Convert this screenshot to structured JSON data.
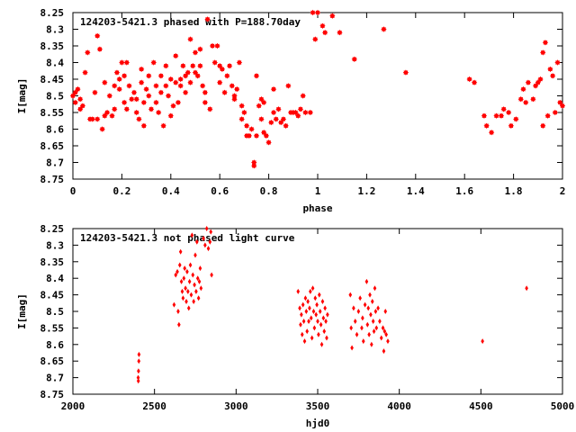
{
  "chart_data": [
    {
      "type": "scatter",
      "title": "124203-5421.3 phased with P=188.70day",
      "xlabel": "phase",
      "ylabel": "I[mag]",
      "xlim": [
        0,
        2
      ],
      "ylim": [
        8.75,
        8.25
      ],
      "y_inverted": true,
      "x_ticks": [
        "0",
        "0.2",
        "0.4",
        "0.6",
        "0.8",
        "1",
        "1.2",
        "1.4",
        "1.6",
        "1.8",
        "2"
      ],
      "x_tick_values": [
        0,
        0.2,
        0.4,
        0.6,
        0.8,
        1.0,
        1.2,
        1.4,
        1.6,
        1.8,
        2.0
      ],
      "y_ticks": [
        "8.25",
        "8.3",
        "8.35",
        "8.4",
        "8.45",
        "8.5",
        "8.55",
        "8.6",
        "8.65",
        "8.7",
        "8.75"
      ],
      "y_tick_values": [
        8.25,
        8.3,
        8.35,
        8.4,
        8.45,
        8.5,
        8.55,
        8.6,
        8.65,
        8.7,
        8.75
      ],
      "marker_color": "#ff0000",
      "marker": "star",
      "points": [
        [
          0.0,
          8.5
        ],
        [
          0.01,
          8.49
        ],
        [
          0.01,
          8.52
        ],
        [
          0.02,
          8.48
        ],
        [
          0.03,
          8.51
        ],
        [
          0.03,
          8.54
        ],
        [
          0.04,
          8.53
        ],
        [
          0.05,
          8.43
        ],
        [
          0.06,
          8.37
        ],
        [
          0.07,
          8.57
        ],
        [
          0.08,
          8.57
        ],
        [
          0.09,
          8.49
        ],
        [
          0.1,
          8.57
        ],
        [
          0.1,
          8.32
        ],
        [
          0.11,
          8.36
        ],
        [
          0.12,
          8.6
        ],
        [
          0.13,
          8.46
        ],
        [
          0.13,
          8.56
        ],
        [
          0.14,
          8.55
        ],
        [
          0.15,
          8.5
        ],
        [
          0.16,
          8.56
        ],
        [
          0.17,
          8.47
        ],
        [
          0.17,
          8.54
        ],
        [
          0.18,
          8.43
        ],
        [
          0.19,
          8.45
        ],
        [
          0.19,
          8.48
        ],
        [
          0.2,
          8.4
        ],
        [
          0.21,
          8.44
        ],
        [
          0.21,
          8.52
        ],
        [
          0.22,
          8.4
        ],
        [
          0.22,
          8.54
        ],
        [
          0.23,
          8.47
        ],
        [
          0.24,
          8.51
        ],
        [
          0.25,
          8.49
        ],
        [
          0.26,
          8.55
        ],
        [
          0.26,
          8.51
        ],
        [
          0.27,
          8.57
        ],
        [
          0.28,
          8.42
        ],
        [
          0.28,
          8.46
        ],
        [
          0.29,
          8.52
        ],
        [
          0.29,
          8.59
        ],
        [
          0.3,
          8.48
        ],
        [
          0.31,
          8.44
        ],
        [
          0.31,
          8.5
        ],
        [
          0.32,
          8.54
        ],
        [
          0.33,
          8.4
        ],
        [
          0.34,
          8.47
        ],
        [
          0.34,
          8.52
        ],
        [
          0.35,
          8.55
        ],
        [
          0.36,
          8.49
        ],
        [
          0.36,
          8.44
        ],
        [
          0.37,
          8.59
        ],
        [
          0.38,
          8.47
        ],
        [
          0.38,
          8.41
        ],
        [
          0.39,
          8.5
        ],
        [
          0.4,
          8.56
        ],
        [
          0.4,
          8.45
        ],
        [
          0.41,
          8.53
        ],
        [
          0.42,
          8.46
        ],
        [
          0.42,
          8.38
        ],
        [
          0.43,
          8.52
        ],
        [
          0.44,
          8.47
        ],
        [
          0.44,
          8.45
        ],
        [
          0.45,
          8.41
        ],
        [
          0.46,
          8.44
        ],
        [
          0.46,
          8.49
        ],
        [
          0.47,
          8.43
        ],
        [
          0.48,
          8.33
        ],
        [
          0.48,
          8.46
        ],
        [
          0.49,
          8.41
        ],
        [
          0.5,
          8.37
        ],
        [
          0.5,
          8.43
        ],
        [
          0.51,
          8.44
        ],
        [
          0.52,
          8.36
        ],
        [
          0.52,
          8.41
        ],
        [
          0.53,
          8.47
        ],
        [
          0.54,
          8.52
        ],
        [
          0.54,
          8.49
        ],
        [
          0.55,
          8.27
        ],
        [
          0.56,
          8.54
        ],
        [
          0.57,
          8.35
        ],
        [
          0.58,
          8.4
        ],
        [
          0.59,
          8.35
        ],
        [
          0.6,
          8.41
        ],
        [
          0.6,
          8.46
        ],
        [
          0.61,
          8.42
        ],
        [
          0.62,
          8.49
        ],
        [
          0.63,
          8.44
        ],
        [
          0.64,
          8.41
        ],
        [
          0.65,
          8.47
        ],
        [
          0.66,
          8.51
        ],
        [
          0.66,
          8.5
        ],
        [
          0.67,
          8.48
        ],
        [
          0.68,
          8.4
        ],
        [
          0.69,
          8.53
        ],
        [
          0.69,
          8.57
        ],
        [
          0.7,
          8.55
        ],
        [
          0.71,
          8.59
        ],
        [
          0.71,
          8.62
        ],
        [
          0.72,
          8.62
        ],
        [
          0.73,
          8.6
        ],
        [
          0.74,
          8.7
        ],
        [
          0.74,
          8.71
        ],
        [
          0.75,
          8.62
        ],
        [
          0.75,
          8.44
        ],
        [
          0.76,
          8.53
        ],
        [
          0.77,
          8.51
        ],
        [
          0.77,
          8.57
        ],
        [
          0.78,
          8.61
        ],
        [
          0.78,
          8.52
        ],
        [
          0.79,
          8.62
        ],
        [
          0.8,
          8.64
        ],
        [
          0.81,
          8.58
        ],
        [
          0.82,
          8.48
        ],
        [
          0.82,
          8.55
        ],
        [
          0.83,
          8.57
        ],
        [
          0.84,
          8.54
        ],
        [
          0.85,
          8.58
        ],
        [
          0.86,
          8.57
        ],
        [
          0.87,
          8.59
        ],
        [
          0.88,
          8.47
        ],
        [
          0.89,
          8.55
        ],
        [
          0.9,
          8.55
        ],
        [
          0.91,
          8.55
        ],
        [
          0.92,
          8.56
        ],
        [
          0.93,
          8.54
        ],
        [
          0.94,
          8.5
        ],
        [
          0.95,
          8.55
        ],
        [
          0.97,
          8.55
        ],
        [
          0.98,
          8.25
        ],
        [
          0.99,
          8.33
        ],
        [
          1.0,
          8.25
        ],
        [
          1.02,
          8.29
        ],
        [
          1.03,
          8.31
        ],
        [
          1.06,
          8.26
        ],
        [
          1.09,
          8.31
        ],
        [
          1.15,
          8.39
        ],
        [
          1.27,
          8.3
        ],
        [
          1.36,
          8.43
        ],
        [
          1.62,
          8.45
        ],
        [
          1.64,
          8.46
        ],
        [
          1.68,
          8.56
        ],
        [
          1.69,
          8.59
        ],
        [
          1.71,
          8.61
        ],
        [
          1.73,
          8.56
        ],
        [
          1.75,
          8.56
        ],
        [
          1.76,
          8.54
        ],
        [
          1.78,
          8.55
        ],
        [
          1.79,
          8.59
        ],
        [
          1.81,
          8.57
        ],
        [
          1.83,
          8.51
        ],
        [
          1.84,
          8.48
        ],
        [
          1.85,
          8.52
        ],
        [
          1.86,
          8.46
        ],
        [
          1.88,
          8.51
        ],
        [
          1.89,
          8.47
        ],
        [
          1.9,
          8.46
        ],
        [
          1.91,
          8.45
        ],
        [
          1.92,
          8.59
        ],
        [
          1.92,
          8.37
        ],
        [
          1.93,
          8.34
        ],
        [
          1.94,
          8.56
        ],
        [
          1.95,
          8.42
        ],
        [
          1.96,
          8.44
        ],
        [
          1.97,
          8.55
        ],
        [
          1.98,
          8.4
        ],
        [
          1.99,
          8.52
        ],
        [
          2.0,
          8.53
        ]
      ]
    },
    {
      "type": "scatter",
      "title": "124203-5421.3 not phased light curve",
      "xlabel": "hjd0",
      "ylabel": "I[mag]",
      "xlim": [
        2000,
        5000
      ],
      "ylim": [
        8.75,
        8.25
      ],
      "y_inverted": true,
      "x_ticks": [
        "2000",
        "2500",
        "3000",
        "3500",
        "4000",
        "4500",
        "5000"
      ],
      "x_tick_values": [
        2000,
        2500,
        3000,
        3500,
        4000,
        4500,
        5000
      ],
      "y_ticks": [
        "8.25",
        "8.3",
        "8.35",
        "8.4",
        "8.45",
        "8.5",
        "8.55",
        "8.6",
        "8.65",
        "8.7",
        "8.75"
      ],
      "y_tick_values": [
        8.25,
        8.3,
        8.35,
        8.4,
        8.45,
        8.5,
        8.55,
        8.6,
        8.65,
        8.7,
        8.75
      ],
      "marker_color": "#ff0000",
      "marker": "diamond",
      "points": [
        [
          2400,
          8.7
        ],
        [
          2401,
          8.71
        ],
        [
          2402,
          8.68
        ],
        [
          2404,
          8.65
        ],
        [
          2405,
          8.63
        ],
        [
          2620,
          8.48
        ],
        [
          2630,
          8.39
        ],
        [
          2640,
          8.38
        ],
        [
          2645,
          8.5
        ],
        [
          2650,
          8.54
        ],
        [
          2655,
          8.36
        ],
        [
          2660,
          8.32
        ],
        [
          2665,
          8.41
        ],
        [
          2670,
          8.44
        ],
        [
          2675,
          8.46
        ],
        [
          2680,
          8.4
        ],
        [
          2685,
          8.37
        ],
        [
          2690,
          8.43
        ],
        [
          2695,
          8.47
        ],
        [
          2700,
          8.38
        ],
        [
          2705,
          8.44
        ],
        [
          2710,
          8.49
        ],
        [
          2715,
          8.41
        ],
        [
          2720,
          8.36
        ],
        [
          2725,
          8.45
        ],
        [
          2730,
          8.27
        ],
        [
          2735,
          8.39
        ],
        [
          2740,
          8.47
        ],
        [
          2745,
          8.42
        ],
        [
          2750,
          8.33
        ],
        [
          2755,
          8.44
        ],
        [
          2760,
          8.29
        ],
        [
          2765,
          8.4
        ],
        [
          2770,
          8.46
        ],
        [
          2775,
          8.41
        ],
        [
          2780,
          8.37
        ],
        [
          2785,
          8.43
        ],
        [
          2800,
          8.28
        ],
        [
          2810,
          8.3
        ],
        [
          2820,
          8.25
        ],
        [
          2830,
          8.31
        ],
        [
          2840,
          8.29
        ],
        [
          2845,
          8.26
        ],
        [
          2850,
          8.39
        ],
        [
          3380,
          8.44
        ],
        [
          3390,
          8.49
        ],
        [
          3395,
          8.54
        ],
        [
          3400,
          8.51
        ],
        [
          3405,
          8.57
        ],
        [
          3410,
          8.48
        ],
        [
          3415,
          8.53
        ],
        [
          3420,
          8.59
        ],
        [
          3425,
          8.46
        ],
        [
          3430,
          8.5
        ],
        [
          3435,
          8.56
        ],
        [
          3440,
          8.47
        ],
        [
          3445,
          8.53
        ],
        [
          3450,
          8.49
        ],
        [
          3455,
          8.44
        ],
        [
          3460,
          8.52
        ],
        [
          3465,
          8.58
        ],
        [
          3470,
          8.43
        ],
        [
          3475,
          8.5
        ],
        [
          3480,
          8.55
        ],
        [
          3485,
          8.46
        ],
        [
          3490,
          8.51
        ],
        [
          3495,
          8.48
        ],
        [
          3500,
          8.53
        ],
        [
          3505,
          8.57
        ],
        [
          3510,
          8.45
        ],
        [
          3515,
          8.5
        ],
        [
          3520,
          8.54
        ],
        [
          3525,
          8.6
        ],
        [
          3530,
          8.47
        ],
        [
          3535,
          8.52
        ],
        [
          3540,
          8.56
        ],
        [
          3545,
          8.49
        ],
        [
          3550,
          8.53
        ],
        [
          3555,
          8.58
        ],
        [
          3560,
          8.51
        ],
        [
          3700,
          8.45
        ],
        [
          3705,
          8.55
        ],
        [
          3710,
          8.61
        ],
        [
          3720,
          8.49
        ],
        [
          3730,
          8.53
        ],
        [
          3740,
          8.57
        ],
        [
          3750,
          8.5
        ],
        [
          3760,
          8.46
        ],
        [
          3770,
          8.55
        ],
        [
          3775,
          8.52
        ],
        [
          3780,
          8.59
        ],
        [
          3790,
          8.48
        ],
        [
          3800,
          8.41
        ],
        [
          3805,
          8.54
        ],
        [
          3810,
          8.49
        ],
        [
          3815,
          8.57
        ],
        [
          3820,
          8.45
        ],
        [
          3825,
          8.51
        ],
        [
          3830,
          8.6
        ],
        [
          3835,
          8.47
        ],
        [
          3840,
          8.53
        ],
        [
          3845,
          8.56
        ],
        [
          3850,
          8.43
        ],
        [
          3855,
          8.5
        ],
        [
          3860,
          8.55
        ],
        [
          3870,
          8.49
        ],
        [
          3880,
          8.53
        ],
        [
          3890,
          8.58
        ],
        [
          3900,
          8.55
        ],
        [
          3905,
          8.62
        ],
        [
          3910,
          8.56
        ],
        [
          3915,
          8.5
        ],
        [
          3920,
          8.57
        ],
        [
          3930,
          8.59
        ],
        [
          4510,
          8.59
        ],
        [
          4780,
          8.43
        ]
      ]
    }
  ]
}
